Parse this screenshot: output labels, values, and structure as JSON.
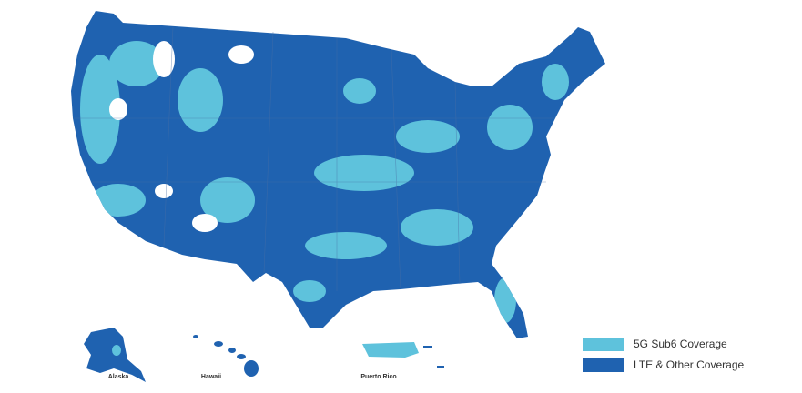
{
  "map": {
    "regions": [
      "Alaska",
      "Hawaii",
      "Puerto Rico"
    ],
    "legend": [
      {
        "label": "5G Sub6 Coverage",
        "color": "#5ec2dc"
      },
      {
        "label": "LTE & Other Coverage",
        "color": "#1f62b0"
      }
    ]
  }
}
